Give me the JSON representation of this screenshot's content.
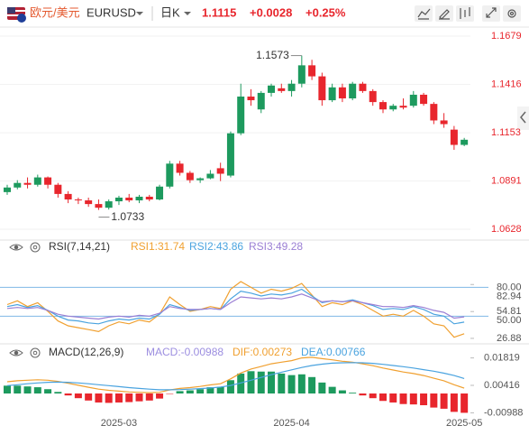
{
  "header": {
    "pair": "欧元/美元",
    "symbol": "EURUSD",
    "period": "日K",
    "change": "+0.0028",
    "change_pct": "+0.25%"
  },
  "chart_data": [
    {
      "type": "candlestick",
      "up_color": "#1d9a5e",
      "down_color": "#e8262d",
      "open": [
        1.083,
        1.0855,
        1.088,
        1.087,
        1.091,
        1.087,
        1.082,
        1.079,
        1.0785,
        1.0765,
        1.0745,
        1.078,
        1.08,
        1.0785,
        1.0805,
        1.079,
        1.086,
        1.0985,
        1.0935,
        1.0895,
        1.0905,
        1.096,
        1.092,
        1.115,
        1.135,
        1.128,
        1.137,
        1.1395,
        1.138,
        1.142,
        1.152,
        1.146,
        1.133,
        1.14,
        1.134,
        1.142,
        1.138,
        1.132,
        1.128,
        1.13,
        1.13,
        1.136,
        1.131,
        1.122,
        1.117,
        1.1087
      ],
      "high": [
        1.087,
        1.0895,
        1.091,
        1.0925,
        1.0915,
        1.088,
        1.0835,
        1.08,
        1.08,
        1.079,
        1.079,
        1.081,
        1.082,
        1.0815,
        1.0815,
        1.087,
        1.1,
        1.1,
        1.0945,
        1.091,
        1.095,
        1.099,
        1.116,
        1.142,
        1.139,
        1.138,
        1.142,
        1.142,
        1.144,
        1.1573,
        1.155,
        1.148,
        1.142,
        1.142,
        1.143,
        1.143,
        1.139,
        1.133,
        1.131,
        1.134,
        1.138,
        1.137,
        1.132,
        1.126,
        1.119,
        1.1125
      ],
      "low": [
        1.0815,
        1.0845,
        1.085,
        1.086,
        1.085,
        1.08,
        1.077,
        1.0765,
        1.075,
        1.0733,
        1.0735,
        1.076,
        1.0775,
        1.077,
        1.078,
        1.0785,
        1.085,
        1.092,
        1.088,
        1.088,
        1.09,
        1.089,
        1.091,
        1.114,
        1.13,
        1.126,
        1.135,
        1.137,
        1.135,
        1.14,
        1.144,
        1.13,
        1.132,
        1.132,
        1.133,
        1.137,
        1.13,
        1.126,
        1.127,
        1.128,
        1.129,
        1.13,
        1.12,
        1.118,
        1.106,
        1.108
      ],
      "close": [
        1.0855,
        1.088,
        1.087,
        1.091,
        1.087,
        1.082,
        1.079,
        1.0785,
        1.0765,
        1.0745,
        1.078,
        1.08,
        1.0785,
        1.0805,
        1.079,
        1.086,
        1.0985,
        1.0935,
        1.0895,
        1.0905,
        1.093,
        1.093,
        1.115,
        1.135,
        1.133,
        1.137,
        1.141,
        1.138,
        1.142,
        1.152,
        1.146,
        1.133,
        1.14,
        1.134,
        1.142,
        1.138,
        1.132,
        1.128,
        1.13,
        1.129,
        1.136,
        1.131,
        1.122,
        1.12,
        1.1087,
        1.1115
      ],
      "ylim": [
        1.0628,
        1.1679
      ],
      "yticks": [
        1.1679,
        1.1416,
        1.1153,
        1.0891,
        1.0628
      ],
      "grid": true
    },
    {
      "type": "line",
      "title": "RSI(7,14,21)",
      "series": [
        {
          "name": "RSI1:31.74",
          "color": "#f0a030",
          "values": [
            62,
            66,
            60,
            64,
            55,
            45,
            40,
            38,
            36,
            34,
            40,
            44,
            42,
            46,
            44,
            52,
            70,
            62,
            55,
            57,
            60,
            58,
            78,
            86,
            80,
            74,
            78,
            76,
            79,
            84,
            72,
            60,
            64,
            62,
            66,
            62,
            56,
            50,
            52,
            50,
            56,
            50,
            42,
            40,
            28,
            31.74
          ]
        },
        {
          "name": "RSI2:43.86",
          "color": "#4aa3df",
          "values": [
            60,
            62,
            59,
            61,
            56,
            50,
            46,
            45,
            43,
            42,
            45,
            47,
            46,
            48,
            47,
            52,
            62,
            59,
            56,
            57,
            58,
            57,
            68,
            76,
            74,
            71,
            73,
            72,
            74,
            78,
            71,
            64,
            66,
            65,
            67,
            64,
            61,
            57,
            58,
            57,
            60,
            57,
            52,
            50,
            42,
            43.86
          ]
        },
        {
          "name": "RSI3:49.28",
          "color": "#9b7fd4",
          "values": [
            58,
            59,
            58,
            59,
            56,
            52,
            50,
            49,
            48,
            47,
            49,
            50,
            49,
            51,
            50,
            53,
            60,
            58,
            57,
            57,
            58,
            57,
            64,
            70,
            69,
            68,
            69,
            68,
            70,
            73,
            69,
            65,
            66,
            65,
            66,
            64,
            62,
            60,
            60,
            59,
            61,
            59,
            56,
            54,
            48,
            49.28
          ]
        }
      ],
      "ylim": [
        24,
        86
      ],
      "yticks": [
        {
          "value": 80,
          "label": "80.00"
        },
        82.94,
        54.81,
        {
          "value": 50,
          "label": "50.00"
        },
        26.88
      ]
    },
    {
      "type": "combo",
      "title": "MACD(12,26,9)",
      "categories": [
        null,
        null,
        null,
        null,
        null,
        null,
        null,
        null,
        null,
        null,
        null,
        "2025-03",
        null,
        null,
        null,
        null,
        null,
        null,
        null,
        null,
        null,
        null,
        null,
        null,
        null,
        null,
        null,
        null,
        "2025-04",
        null,
        null,
        null,
        null,
        null,
        null,
        null,
        null,
        null,
        null,
        null,
        null,
        null,
        null,
        null,
        null,
        "2025-05"
      ],
      "series": [
        {
          "name": "MACD:-0.00988",
          "kind": "bar",
          "color": "#9c8ee0",
          "up_color": "#1d9a5e",
          "down_color": "#e8262d",
          "values": [
            0.004,
            0.004,
            0.0036,
            0.0032,
            0.0022,
            0.0008,
            -0.001,
            -0.0024,
            -0.0036,
            -0.0046,
            -0.0048,
            -0.0046,
            -0.0044,
            -0.004,
            -0.0036,
            -0.0026,
            -0.0002,
            0.0012,
            0.0016,
            0.0022,
            0.0032,
            0.0034,
            0.0068,
            0.0102,
            0.0114,
            0.0112,
            0.0112,
            0.0102,
            0.0094,
            0.0098,
            0.0084,
            0.0056,
            0.0034,
            0.0016,
            0.0004,
            -0.001,
            -0.0024,
            -0.0038,
            -0.0046,
            -0.0054,
            -0.0056,
            -0.006,
            -0.0072,
            -0.0078,
            -0.0094,
            -0.00988
          ]
        },
        {
          "name": "DIF:0.00273",
          "kind": "line",
          "color": "#f0a030",
          "values": [
            0.006,
            0.0065,
            0.0068,
            0.007,
            0.0068,
            0.0062,
            0.0052,
            0.0042,
            0.0032,
            0.0022,
            0.0016,
            0.0012,
            0.0008,
            0.0006,
            0.0004,
            0.0006,
            0.0018,
            0.0026,
            0.003,
            0.0036,
            0.0044,
            0.005,
            0.0075,
            0.0105,
            0.0125,
            0.0138,
            0.0152,
            0.016,
            0.0168,
            0.0182,
            0.0185,
            0.0178,
            0.0172,
            0.0165,
            0.016,
            0.0152,
            0.0142,
            0.013,
            0.012,
            0.011,
            0.0102,
            0.0092,
            0.0078,
            0.0065,
            0.0045,
            0.00273
          ]
        },
        {
          "name": "DEA:0.00766",
          "kind": "line",
          "color": "#4aa3df",
          "values": [
            0.004,
            0.0045,
            0.005,
            0.0054,
            0.0057,
            0.0058,
            0.0057,
            0.0054,
            0.005,
            0.0045,
            0.004,
            0.0035,
            0.003,
            0.0026,
            0.0022,
            0.0019,
            0.0019,
            0.002,
            0.0022,
            0.0025,
            0.0028,
            0.0033,
            0.0041,
            0.0054,
            0.0068,
            0.0082,
            0.0096,
            0.0109,
            0.0121,
            0.0133,
            0.0143,
            0.015,
            0.0155,
            0.0157,
            0.0158,
            0.0157,
            0.0154,
            0.0149,
            0.0143,
            0.0137,
            0.013,
            0.0122,
            0.0114,
            0.0104,
            0.0092,
            0.00766
          ]
        }
      ],
      "ylim": [
        -0.012,
        0.024
      ],
      "yticks": [
        0.01819,
        0.00416,
        -0.00988
      ]
    }
  ]
}
